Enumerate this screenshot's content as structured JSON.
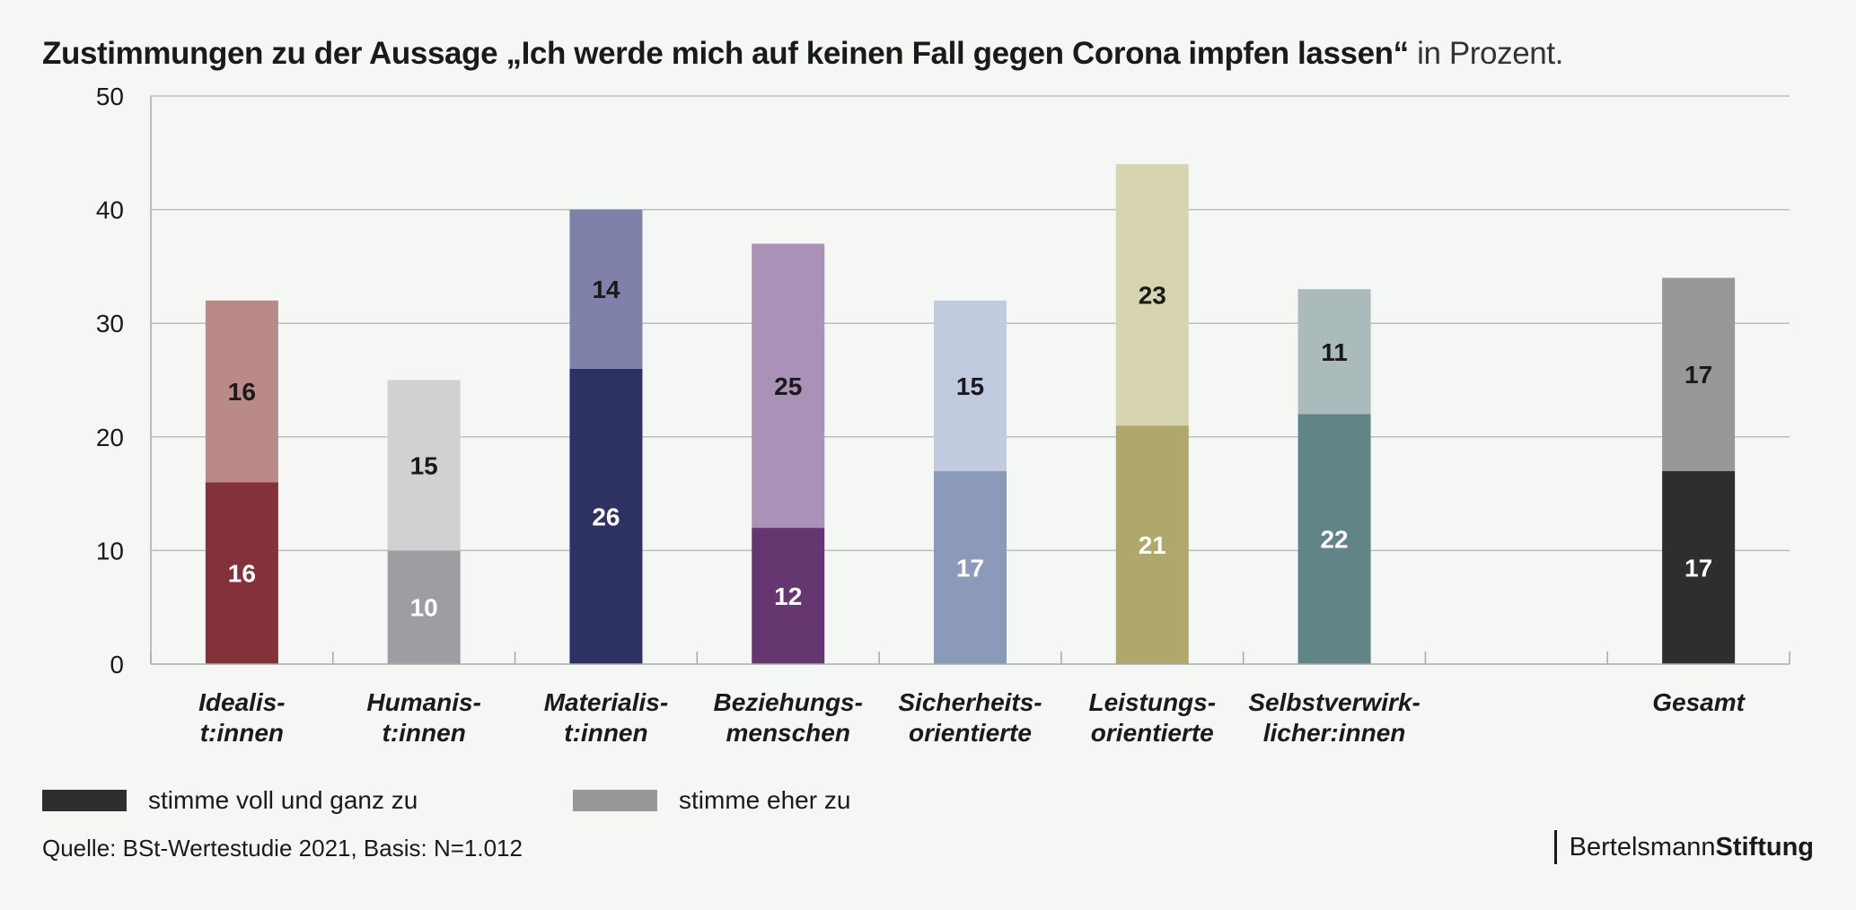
{
  "title": {
    "main": "Zustimmungen zu der Aussage „Ich werde mich auf keinen Fall gegen Corona impfen lassen“",
    "unit": "in Prozent."
  },
  "chart_data": {
    "type": "bar",
    "stacked": true,
    "ylim": [
      0,
      50
    ],
    "yticks": [
      0,
      10,
      20,
      30,
      40,
      50
    ],
    "grid": true,
    "categories": [
      {
        "line1": "Idealis-",
        "line2": "t:innen"
      },
      {
        "line1": "Humanis-",
        "line2": "t:innen"
      },
      {
        "line1": "Materialis-",
        "line2": "t:innen"
      },
      {
        "line1": "Beziehungs-",
        "line2": "menschen"
      },
      {
        "line1": "Sicherheits-",
        "line2": "orientierte"
      },
      {
        "line1": "Leistungs-",
        "line2": "orientierte"
      },
      {
        "line1": "Selbstverwirk-",
        "line2": "licher:innen"
      },
      {
        "line1": "",
        "line2": ""
      },
      {
        "line1": "Gesamt",
        "line2": ""
      }
    ],
    "series": [
      {
        "name": "stimme voll und ganz zu",
        "values": [
          16,
          10,
          26,
          12,
          17,
          21,
          22,
          null,
          17
        ]
      },
      {
        "name": "stimme eher zu",
        "values": [
          16,
          15,
          14,
          25,
          15,
          23,
          11,
          null,
          17
        ]
      }
    ],
    "colors": {
      "dark": [
        "#84323a",
        "#9d9ea1",
        "#2e3263",
        "#663671",
        "#8a9ab8",
        "#aea96a",
        "#618586",
        null,
        "#2d2f2e"
      ],
      "light": [
        "#b98a88",
        "#d0d1d3",
        "#7f81aa",
        "#a991b8",
        "#c2cadf",
        "#d7d4b1",
        "#abbbbc",
        null,
        "#979998"
      ]
    },
    "label_colors": {
      "dark": [
        "#ffffff",
        "#ffffff",
        "#ffffff",
        "#ffffff",
        "#ffffff",
        "#ffffff",
        "#ffffff",
        null,
        "#ffffff"
      ],
      "light": [
        "#1a1a1a",
        "#1a1a1a",
        "#1a1a1a",
        "#1a1a1a",
        "#1a1a1a",
        "#1a1a1a",
        "#1a1a1a",
        null,
        "#1a1a1a"
      ]
    }
  },
  "legend": {
    "items": [
      {
        "label": "stimme voll und ganz zu",
        "color": "#2d2f2e"
      },
      {
        "label": "stimme eher zu",
        "color": "#979998"
      }
    ]
  },
  "source": "Quelle: BSt-Wertestudie 2021, Basis: N=1.012",
  "brand": {
    "regular": "Bertelsmann",
    "bold": "Stiftung"
  }
}
